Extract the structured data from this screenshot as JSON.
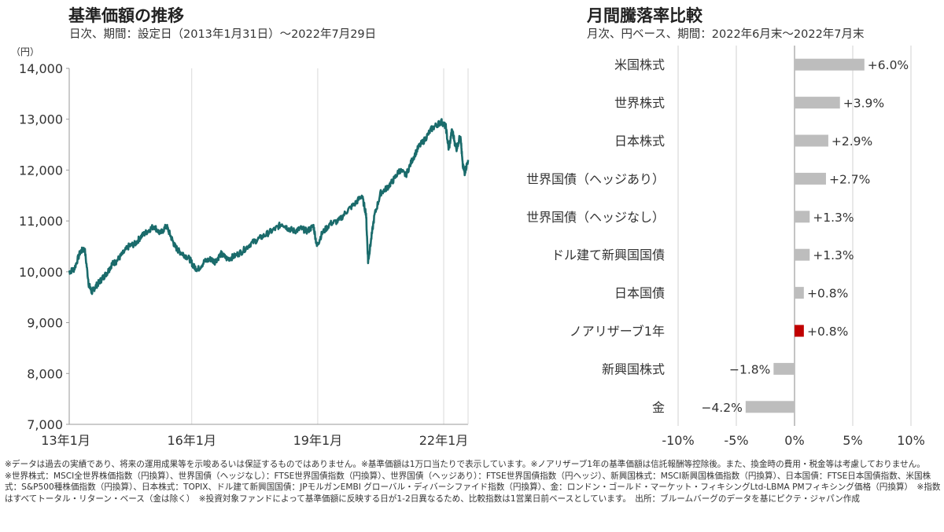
{
  "left": {
    "title": "基準価額の推移",
    "subtitle": "日次、期間：設定日（2013年1月31日）～2022年7月29日"
  },
  "right": {
    "title": "月間騰落率比較",
    "subtitle": "月次、円ベース、期間：2022年6月末～2022年7月末"
  },
  "notes": [
    "※データは過去の実績であり、将来の運用成果等を示唆あるいは保証するものではありません。※基準価額は1万口当たりで表示しています。※ノアリザーブ1年の基準価額は信託報酬等控除後。また、換金時の費用・税金等は考慮しておりません。",
    "※世界株式：MSCI全世界株価指数（円換算）、世界国債（ヘッジなし）：FTSE世界国債指数（円換算）、世界国債（ヘッジあり）：FTSE世界国債指数（円ヘッジ）、新興国株式：MSCI新興国株価指数（円換算）、日本国債：FTSE日本国債指数、米国株式：S&P500種株価指数（円換算）、日本株式：TOPIX、ドル建て新興国国債：JPモルガンEMBI グローバル・ディバーシファイド指数（円換算）、金：ロンドン・ゴールド・マーケット・フィキシングLtd-LBMA PMフィキシング価格（円換算）　※指数はすべてトータル・リターン・ベース（金は除く）　※投資対象ファンドによって基準価額に反映する日が1-2日異なるため、比較指数は1営業日前ベースとしています。　出所：ブルームバーグのデータを基にピクテ・ジャパン作成"
  ],
  "chart_data": [
    {
      "type": "line",
      "title": "基準価額の推移",
      "ylabel": "（円）",
      "ylim": [
        7000,
        14000
      ],
      "yticks": [
        7000,
        8000,
        9000,
        10000,
        11000,
        12000,
        13000,
        14000
      ],
      "ytick_labels": [
        "7,000",
        "8,000",
        "9,000",
        "10,000",
        "11,000",
        "12,000",
        "13,000",
        "14,000"
      ],
      "xlim": [
        2013.083,
        2022.58
      ],
      "xticks": [
        2013.0,
        2016.0,
        2019.0,
        2022.0
      ],
      "xtick_labels": [
        "13年1月",
        "16年1月",
        "19年1月",
        "22年1月"
      ],
      "grid": "vertical",
      "color": "#1a6b6b",
      "series": [
        {
          "x": [
            2013.08,
            2013.2,
            2013.35,
            2013.45,
            2013.55,
            2013.62,
            2013.7,
            2013.8,
            2013.9,
            2014.0,
            2014.1,
            2014.2,
            2014.35,
            2014.5,
            2014.65,
            2014.8,
            2014.95,
            2015.1,
            2015.25,
            2015.4,
            2015.5,
            2015.6,
            2015.7,
            2015.8,
            2015.95,
            2016.05,
            2016.15,
            2016.3,
            2016.45,
            2016.55,
            2016.7,
            2016.85,
            2017.0,
            2017.2,
            2017.4,
            2017.6,
            2017.8,
            2018.0,
            2018.15,
            2018.3,
            2018.45,
            2018.6,
            2018.75,
            2018.9,
            2018.98,
            2019.1,
            2019.3,
            2019.5,
            2019.7,
            2019.9,
            2020.05,
            2020.15,
            2020.2,
            2020.25,
            2020.35,
            2020.5,
            2020.65,
            2020.8,
            2020.95,
            2021.1,
            2021.25,
            2021.4,
            2021.55,
            2021.7,
            2021.85,
            2021.95,
            2022.05,
            2022.12,
            2022.2,
            2022.3,
            2022.4,
            2022.45,
            2022.5,
            2022.58
          ],
          "y": [
            10000,
            10050,
            10400,
            10450,
            9750,
            9600,
            9700,
            9800,
            9900,
            10000,
            10150,
            10200,
            10350,
            10500,
            10550,
            10700,
            10800,
            10900,
            10750,
            10900,
            10700,
            10500,
            10400,
            10350,
            10250,
            10100,
            10050,
            10200,
            10250,
            10200,
            10350,
            10250,
            10300,
            10400,
            10550,
            10650,
            10750,
            10850,
            10950,
            10850,
            10800,
            10850,
            10800,
            10900,
            10500,
            10750,
            10950,
            11000,
            11200,
            11350,
            11500,
            11150,
            10200,
            10500,
            11100,
            11550,
            11650,
            11800,
            12000,
            11900,
            12200,
            12450,
            12600,
            12800,
            12900,
            12950,
            12850,
            12400,
            12800,
            12400,
            12700,
            12100,
            11950,
            12200
          ]
        }
      ]
    },
    {
      "type": "bar",
      "orientation": "horizontal",
      "title": "月間騰落率比較",
      "categories": [
        "米国株式",
        "世界株式",
        "日本株式",
        "世界国債（ヘッジあり）",
        "世界国債（ヘッジなし）",
        "ドル建て新興国国債",
        "日本国債",
        "ノアリザーブ1年",
        "新興国株式",
        "金"
      ],
      "values": [
        6.0,
        3.9,
        2.9,
        2.7,
        1.3,
        1.3,
        0.8,
        0.8,
        -1.8,
        -4.2
      ],
      "labels": [
        "+6.0%",
        "+3.9%",
        "+2.9%",
        "+2.7%",
        "+1.3%",
        "+1.3%",
        "+0.8%",
        "+0.8%",
        "−1.8%",
        "−4.2%"
      ],
      "colors": [
        "#bdbdbd",
        "#bdbdbd",
        "#bdbdbd",
        "#bdbdbd",
        "#bdbdbd",
        "#bdbdbd",
        "#bdbdbd",
        "#c00000",
        "#bdbdbd",
        "#bdbdbd"
      ],
      "xlim": [
        -10,
        10
      ],
      "xticks": [
        -10,
        -5,
        0,
        5,
        10
      ],
      "xtick_labels": [
        "-10%",
        "-5%",
        "0%",
        "5%",
        "10%"
      ],
      "grid": "vertical"
    }
  ]
}
